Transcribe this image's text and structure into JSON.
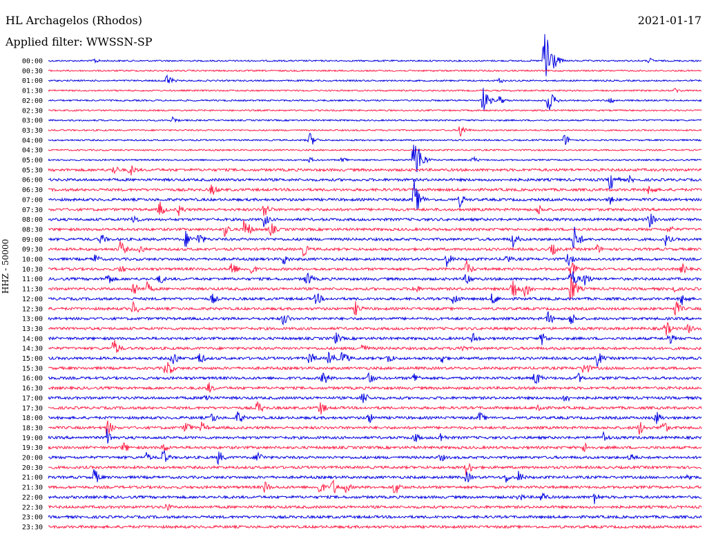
{
  "header": {
    "station": "HL Archagelos (Rhodos)",
    "date": "2021-01-17",
    "filter": "Applied filter: WWSSN-SP"
  },
  "chart_data": {
    "type": "line",
    "title": "HL Archagelos (Rhodos)",
    "ylabel": "HHZ - 50000",
    "colors": [
      "#0000e0",
      "#ff1e46"
    ],
    "grid": false,
    "y": [
      "00:00",
      "00:30",
      "01:00",
      "01:30",
      "02:00",
      "02:30",
      "03:00",
      "03:30",
      "04:00",
      "04:30",
      "05:00",
      "05:30",
      "06:00",
      "06:30",
      "07:00",
      "07:30",
      "08:00",
      "08:30",
      "09:00",
      "09:30",
      "10:00",
      "10:30",
      "11:00",
      "11:30",
      "12:00",
      "12:30",
      "13:00",
      "13:30",
      "14:00",
      "14:30",
      "15:00",
      "15:30",
      "16:00",
      "16:30",
      "17:00",
      "17:30",
      "18:00",
      "18:30",
      "19:00",
      "19:30",
      "20:00",
      "20:30",
      "21:00",
      "21:30",
      "22:00",
      "22:30",
      "23:00",
      "23:30"
    ],
    "events": [
      {
        "row": 0,
        "x": 0.07,
        "a": 5
      },
      {
        "row": 0,
        "x": 0.76,
        "a": 80
      },
      {
        "row": 0,
        "x": 0.92,
        "a": 5
      },
      {
        "row": 2,
        "x": 0.18,
        "a": 12
      },
      {
        "row": 2,
        "x": 0.69,
        "a": 5
      },
      {
        "row": 3,
        "x": 0.96,
        "a": 5
      },
      {
        "row": 4,
        "x": 0.665,
        "a": 22
      },
      {
        "row": 4,
        "x": 0.69,
        "a": 8
      },
      {
        "row": 4,
        "x": 0.765,
        "a": 20
      },
      {
        "row": 4,
        "x": 0.86,
        "a": 6
      },
      {
        "row": 6,
        "x": 0.19,
        "a": 6
      },
      {
        "row": 7,
        "x": 0.63,
        "a": 12
      },
      {
        "row": 8,
        "x": 0.4,
        "a": 12
      },
      {
        "row": 8,
        "x": 0.79,
        "a": 10
      },
      {
        "row": 10,
        "x": 0.4,
        "a": 5
      },
      {
        "row": 10,
        "x": 0.45,
        "a": 6
      },
      {
        "row": 10,
        "x": 0.56,
        "a": 50
      },
      {
        "row": 10,
        "x": 0.65,
        "a": 6
      },
      {
        "row": 11,
        "x": 0.1,
        "a": 9
      },
      {
        "row": 11,
        "x": 0.125,
        "a": 11
      },
      {
        "row": 12,
        "x": 0.86,
        "a": 18
      },
      {
        "row": 12,
        "x": 0.89,
        "a": 6
      },
      {
        "row": 13,
        "x": 0.25,
        "a": 11
      },
      {
        "row": 13,
        "x": 0.92,
        "a": 12
      },
      {
        "row": 14,
        "x": 0.56,
        "a": 30
      },
      {
        "row": 14,
        "x": 0.63,
        "a": 11
      },
      {
        "row": 14,
        "x": 0.86,
        "a": 8
      },
      {
        "row": 15,
        "x": 0.17,
        "a": 14
      },
      {
        "row": 15,
        "x": 0.2,
        "a": 10
      },
      {
        "row": 15,
        "x": 0.33,
        "a": 14
      },
      {
        "row": 15,
        "x": 0.75,
        "a": 10
      },
      {
        "row": 16,
        "x": 0.13,
        "a": 10
      },
      {
        "row": 16,
        "x": 0.33,
        "a": 12
      },
      {
        "row": 16,
        "x": 0.92,
        "a": 14
      },
      {
        "row": 17,
        "x": 0.27,
        "a": 12
      },
      {
        "row": 17,
        "x": 0.3,
        "a": 20
      },
      {
        "row": 17,
        "x": 0.34,
        "a": 12
      },
      {
        "row": 17,
        "x": 0.95,
        "a": 8
      },
      {
        "row": 18,
        "x": 0.08,
        "a": 10
      },
      {
        "row": 18,
        "x": 0.21,
        "a": 14
      },
      {
        "row": 18,
        "x": 0.23,
        "a": 12
      },
      {
        "row": 18,
        "x": 0.71,
        "a": 14
      },
      {
        "row": 18,
        "x": 0.805,
        "a": 22
      },
      {
        "row": 18,
        "x": 0.945,
        "a": 10
      },
      {
        "row": 19,
        "x": 0.11,
        "a": 14
      },
      {
        "row": 19,
        "x": 0.14,
        "a": 8
      },
      {
        "row": 19,
        "x": 0.39,
        "a": 12
      },
      {
        "row": 19,
        "x": 0.77,
        "a": 12
      },
      {
        "row": 19,
        "x": 0.84,
        "a": 8
      },
      {
        "row": 20,
        "x": 0.07,
        "a": 10
      },
      {
        "row": 20,
        "x": 0.36,
        "a": 10
      },
      {
        "row": 20,
        "x": 0.61,
        "a": 12
      },
      {
        "row": 20,
        "x": 0.7,
        "a": 10
      },
      {
        "row": 20,
        "x": 0.795,
        "a": 12
      },
      {
        "row": 21,
        "x": 0.11,
        "a": 8
      },
      {
        "row": 21,
        "x": 0.28,
        "a": 14
      },
      {
        "row": 21,
        "x": 0.31,
        "a": 10
      },
      {
        "row": 21,
        "x": 0.64,
        "a": 14
      },
      {
        "row": 21,
        "x": 0.8,
        "a": 14
      },
      {
        "row": 21,
        "x": 0.97,
        "a": 10
      },
      {
        "row": 22,
        "x": 0.09,
        "a": 12
      },
      {
        "row": 22,
        "x": 0.17,
        "a": 10
      },
      {
        "row": 22,
        "x": 0.395,
        "a": 14
      },
      {
        "row": 22,
        "x": 0.64,
        "a": 12
      },
      {
        "row": 22,
        "x": 0.8,
        "a": 20
      },
      {
        "row": 22,
        "x": 0.82,
        "a": 14
      },
      {
        "row": 23,
        "x": 0.13,
        "a": 14
      },
      {
        "row": 23,
        "x": 0.15,
        "a": 12
      },
      {
        "row": 23,
        "x": 0.56,
        "a": 10
      },
      {
        "row": 23,
        "x": 0.71,
        "a": 22
      },
      {
        "row": 23,
        "x": 0.73,
        "a": 16
      },
      {
        "row": 23,
        "x": 0.8,
        "a": 24
      },
      {
        "row": 23,
        "x": 0.955,
        "a": 8
      },
      {
        "row": 24,
        "x": 0.25,
        "a": 10
      },
      {
        "row": 24,
        "x": 0.41,
        "a": 12
      },
      {
        "row": 24,
        "x": 0.62,
        "a": 12
      },
      {
        "row": 24,
        "x": 0.68,
        "a": 12
      },
      {
        "row": 24,
        "x": 0.97,
        "a": 12
      },
      {
        "row": 25,
        "x": 0.13,
        "a": 12
      },
      {
        "row": 25,
        "x": 0.47,
        "a": 12
      },
      {
        "row": 25,
        "x": 0.96,
        "a": 14
      },
      {
        "row": 26,
        "x": 0.36,
        "a": 12
      },
      {
        "row": 26,
        "x": 0.765,
        "a": 12
      },
      {
        "row": 26,
        "x": 0.8,
        "a": 12
      },
      {
        "row": 27,
        "x": 0.945,
        "a": 14
      },
      {
        "row": 27,
        "x": 0.98,
        "a": 10
      },
      {
        "row": 28,
        "x": 0.44,
        "a": 10
      },
      {
        "row": 28,
        "x": 0.65,
        "a": 10
      },
      {
        "row": 28,
        "x": 0.755,
        "a": 12
      },
      {
        "row": 28,
        "x": 0.95,
        "a": 10
      },
      {
        "row": 29,
        "x": 0.1,
        "a": 16
      },
      {
        "row": 29,
        "x": 0.48,
        "a": 10
      },
      {
        "row": 29,
        "x": 0.63,
        "a": 10
      },
      {
        "row": 30,
        "x": 0.19,
        "a": 14
      },
      {
        "row": 30,
        "x": 0.23,
        "a": 12
      },
      {
        "row": 30,
        "x": 0.4,
        "a": 12
      },
      {
        "row": 30,
        "x": 0.43,
        "a": 14
      },
      {
        "row": 30,
        "x": 0.45,
        "a": 14
      },
      {
        "row": 30,
        "x": 0.52,
        "a": 10
      },
      {
        "row": 30,
        "x": 0.6,
        "a": 12
      },
      {
        "row": 30,
        "x": 0.84,
        "a": 14
      },
      {
        "row": 31,
        "x": 0.18,
        "a": 18
      },
      {
        "row": 31,
        "x": 0.82,
        "a": 14
      },
      {
        "row": 32,
        "x": 0.42,
        "a": 14
      },
      {
        "row": 32,
        "x": 0.49,
        "a": 12
      },
      {
        "row": 32,
        "x": 0.56,
        "a": 10
      },
      {
        "row": 32,
        "x": 0.745,
        "a": 14
      },
      {
        "row": 32,
        "x": 0.81,
        "a": 10
      },
      {
        "row": 33,
        "x": 0.245,
        "a": 10
      },
      {
        "row": 34,
        "x": 0.24,
        "a": 10
      },
      {
        "row": 34,
        "x": 0.48,
        "a": 14
      },
      {
        "row": 34,
        "x": 0.79,
        "a": 10
      },
      {
        "row": 35,
        "x": 0.32,
        "a": 12
      },
      {
        "row": 35,
        "x": 0.415,
        "a": 14
      },
      {
        "row": 35,
        "x": 0.75,
        "a": 10
      },
      {
        "row": 36,
        "x": 0.25,
        "a": 10
      },
      {
        "row": 36,
        "x": 0.29,
        "a": 12
      },
      {
        "row": 36,
        "x": 0.49,
        "a": 10
      },
      {
        "row": 36,
        "x": 0.66,
        "a": 10
      },
      {
        "row": 36,
        "x": 0.93,
        "a": 12
      },
      {
        "row": 37,
        "x": 0.09,
        "a": 14
      },
      {
        "row": 37,
        "x": 0.21,
        "a": 12
      },
      {
        "row": 37,
        "x": 0.235,
        "a": 10
      },
      {
        "row": 37,
        "x": 0.905,
        "a": 12
      },
      {
        "row": 37,
        "x": 0.94,
        "a": 14
      },
      {
        "row": 38,
        "x": 0.09,
        "a": 14
      },
      {
        "row": 38,
        "x": 0.56,
        "a": 10
      },
      {
        "row": 38,
        "x": 0.6,
        "a": 10
      },
      {
        "row": 38,
        "x": 0.85,
        "a": 10
      },
      {
        "row": 39,
        "x": 0.115,
        "a": 10
      },
      {
        "row": 39,
        "x": 0.175,
        "a": 10
      },
      {
        "row": 39,
        "x": 0.82,
        "a": 10
      },
      {
        "row": 40,
        "x": 0.15,
        "a": 8
      },
      {
        "row": 40,
        "x": 0.175,
        "a": 14
      },
      {
        "row": 40,
        "x": 0.26,
        "a": 12
      },
      {
        "row": 40,
        "x": 0.32,
        "a": 12
      },
      {
        "row": 40,
        "x": 0.6,
        "a": 8
      },
      {
        "row": 40,
        "x": 0.89,
        "a": 10
      },
      {
        "row": 41,
        "x": 0.64,
        "a": 14
      },
      {
        "row": 42,
        "x": 0.07,
        "a": 14
      },
      {
        "row": 42,
        "x": 0.64,
        "a": 10
      },
      {
        "row": 42,
        "x": 0.7,
        "a": 10
      },
      {
        "row": 42,
        "x": 0.72,
        "a": 10
      },
      {
        "row": 42,
        "x": 0.98,
        "a": 8
      },
      {
        "row": 43,
        "x": 0.33,
        "a": 12
      },
      {
        "row": 43,
        "x": 0.415,
        "a": 12
      },
      {
        "row": 43,
        "x": 0.435,
        "a": 14
      },
      {
        "row": 43,
        "x": 0.455,
        "a": 10
      },
      {
        "row": 43,
        "x": 0.53,
        "a": 14
      },
      {
        "row": 44,
        "x": 0.72,
        "a": 8
      },
      {
        "row": 44,
        "x": 0.755,
        "a": 10
      },
      {
        "row": 44,
        "x": 0.835,
        "a": 12
      },
      {
        "row": 45,
        "x": 0.18,
        "a": 8
      }
    ]
  }
}
